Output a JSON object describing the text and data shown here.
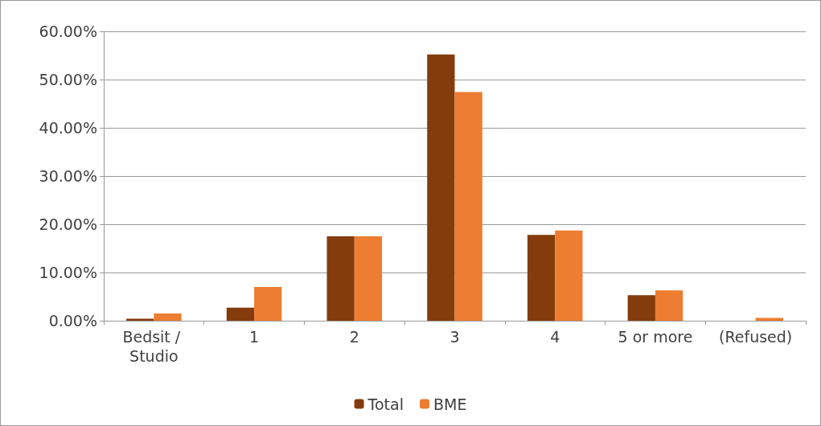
{
  "chart_data": {
    "type": "bar",
    "categories": [
      "Bedsit / Studio",
      "1",
      "2",
      "3",
      "4",
      "5 or more",
      "(Refused)"
    ],
    "series": [
      {
        "name": "Total",
        "color": "#843c0c",
        "values": [
          0.4,
          2.7,
          17.5,
          55.2,
          17.8,
          5.3,
          0
        ]
      },
      {
        "name": "BME",
        "color": "#ed7d31",
        "values": [
          1.5,
          7.0,
          17.5,
          47.4,
          18.7,
          6.3,
          0.6
        ]
      }
    ],
    "ylim": [
      0,
      60
    ],
    "yticks": [
      {
        "value": 0,
        "label": "0.00%"
      },
      {
        "value": 10,
        "label": "10.00%"
      },
      {
        "value": 20,
        "label": "20.00%"
      },
      {
        "value": 30,
        "label": "30.00%"
      },
      {
        "value": 40,
        "label": "40.00%"
      },
      {
        "value": 50,
        "label": "50.00%"
      },
      {
        "value": 60,
        "label": "60.00%"
      }
    ],
    "grid": "y",
    "legend": "bottom"
  }
}
